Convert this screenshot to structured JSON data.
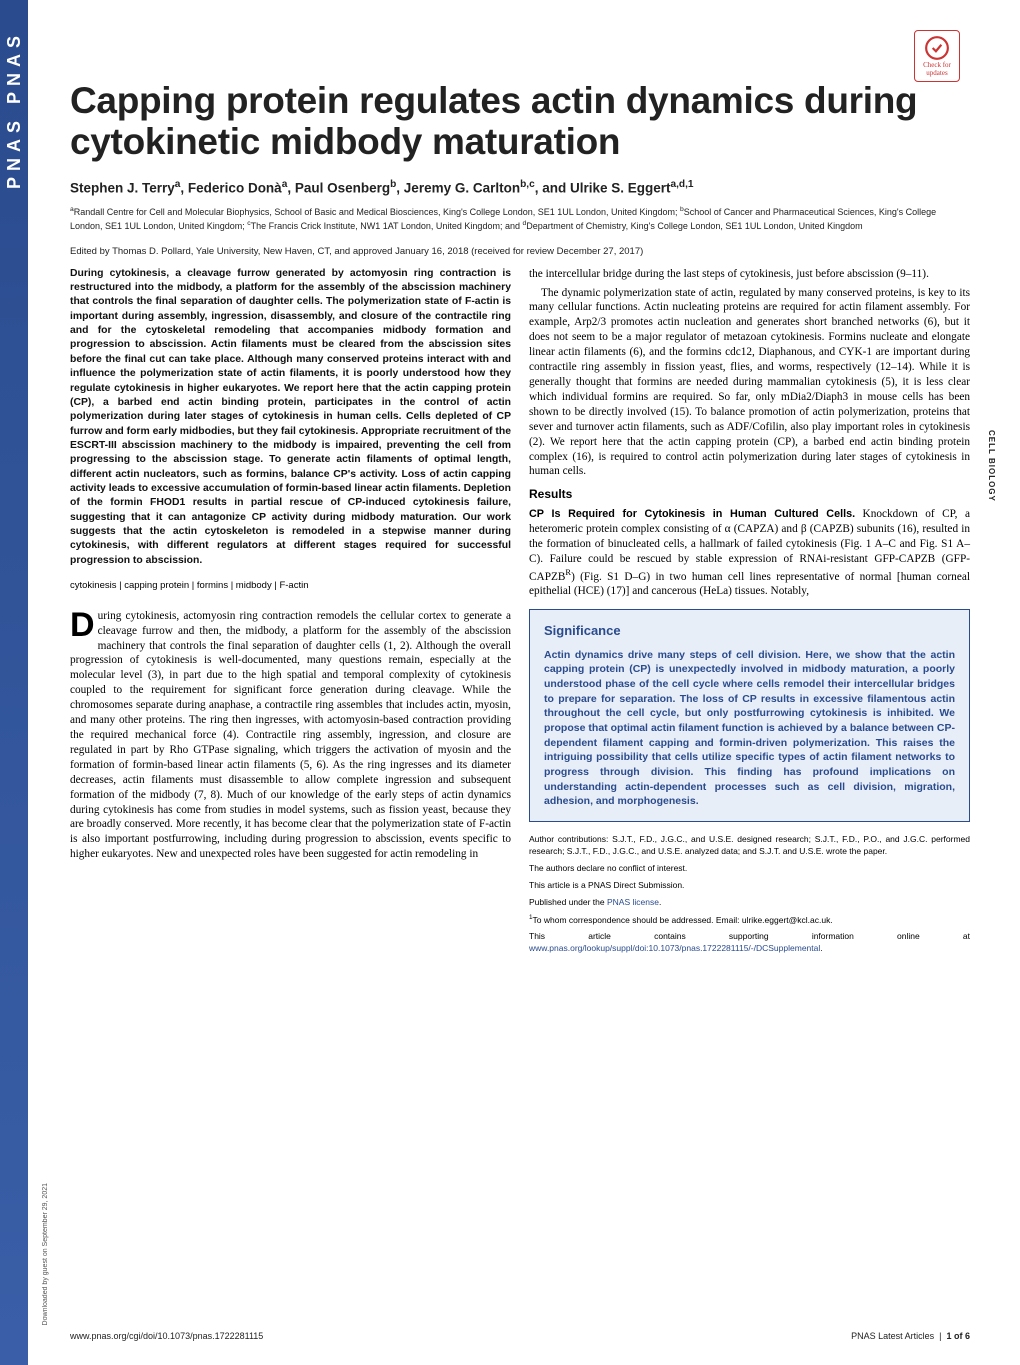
{
  "sidebar_text": "PNAS  PNAS",
  "cfu_label": "Check for updates",
  "title": "Capping protein regulates actin dynamics during cytokinetic midbody maturation",
  "authors_html": "Stephen J. Terry<sup>a</sup>, Federico Donà<sup>a</sup>, Paul Osenberg<sup>b</sup>, Jeremy G. Carlton<sup>b,c</sup>, and Ulrike S. Eggert<sup>a,d,1</sup>",
  "affiliations": "<sup>a</sup>Randall Centre for Cell and Molecular Biophysics, School of Basic and Medical Biosciences, King's College London, SE1 1UL London, United Kingdom; <sup>b</sup>School of Cancer and Pharmaceutical Sciences, King's College London, SE1 1UL London, United Kingdom; <sup>c</sup>The Francis Crick Institute, NW1 1AT London, United Kingdom; and <sup>d</sup>Department of Chemistry, King's College London, SE1 1UL London, United Kingdom",
  "edited_by": "Edited by Thomas D. Pollard, Yale University, New Haven, CT, and approved January 16, 2018 (received for review December 27, 2017)",
  "abstract": "During cytokinesis, a cleavage furrow generated by actomyosin ring contraction is restructured into the midbody, a platform for the assembly of the abscission machinery that controls the final separation of daughter cells. The polymerization state of F-actin is important during assembly, ingression, disassembly, and closure of the contractile ring and for the cytoskeletal remodeling that accompanies midbody formation and progression to abscission. Actin filaments must be cleared from the abscission sites before the final cut can take place. Although many conserved proteins interact with and influence the polymerization state of actin filaments, it is poorly understood how they regulate cytokinesis in higher eukaryotes. We report here that the actin capping protein (CP), a barbed end actin binding protein, participates in the control of actin polymerization during later stages of cytokinesis in human cells. Cells depleted of CP furrow and form early midbodies, but they fail cytokinesis. Appropriate recruitment of the ESCRT-III abscission machinery to the midbody is impaired, preventing the cell from progressing to the abscission stage. To generate actin filaments of optimal length, different actin nucleators, such as formins, balance CP's activity. Loss of actin capping activity leads to excessive accumulation of formin-based linear actin filaments. Depletion of the formin FHOD1 results in partial rescue of CP-induced cytokinesis failure, suggesting that it can antagonize CP activity during midbody maturation. Our work suggests that the actin cytoskeleton is remodeled in a stepwise manner during cytokinesis, with different regulators at different stages required for successful progression to abscission.",
  "keywords": "cytokinesis | capping protein | formins | midbody | F-actin",
  "intro_first": "uring cytokinesis, actomyosin ring contraction remodels the cellular cortex to generate a cleavage furrow and then, the midbody, a platform for the assembly of the abscission machinery that controls the final separation of daughter cells (1, 2). Although the overall progression of cytokinesis is well-documented, many questions remain, especially at the molecular level (3), in part due to the high spatial and temporal complexity of cytokinesis coupled to the requirement for significant force generation during cleavage. While the chromosomes separate during anaphase, a contractile ring assembles that includes actin, myosin, and many other proteins. The ring then ingresses, with actomyosin-based contraction providing the required mechanical force (4). Contractile ring assembly, ingression, and closure are regulated in part by Rho GTPase signaling, which triggers the activation of myosin and the formation of formin-based linear actin filaments (5, 6). As the ring ingresses and its diameter decreases, actin filaments must disassemble to allow complete ingression and subsequent formation of the midbody (7, 8). Much of our knowledge of the early steps of actin dynamics during cytokinesis has come from studies in model systems, such as fission yeast, because they are broadly conserved. More recently, it has become clear that the polymerization state of F-actin is also important postfurrowing, including during progression to abscission, events specific to higher eukaryotes. New and unexpected roles have been suggested for actin remodeling in",
  "col2_p1": "the intercellular bridge during the last steps of cytokinesis, just before abscission (9–11).",
  "col2_p2": "The dynamic polymerization state of actin, regulated by many conserved proteins, is key to its many cellular functions. Actin nucleating proteins are required for actin filament assembly. For example, Arp2/3 promotes actin nucleation and generates short branched networks (6), but it does not seem to be a major regulator of metazoan cytokinesis. Formins nucleate and elongate linear actin filaments (6), and the formins cdc12, Diaphanous, and CYK-1 are important during contractile ring assembly in fission yeast, flies, and worms, respectively (12–14). While it is generally thought that formins are needed during mammalian cytokinesis (5), it is less clear which individual formins are required. So far, only mDia2/Diaph3 in mouse cells has been shown to be directly involved (15). To balance promotion of actin polymerization, proteins that sever and turnover actin filaments, such as ADF/Cofilin, also play important roles in cytokinesis (2). We report here that the actin capping protein (CP), a barbed end actin binding protein complex (16), is required to control actin polymerization during later stages of cytokinesis in human cells.",
  "results_heading": "Results",
  "results_sub": "CP Is Required for Cytokinesis in Human Cultured Cells.",
  "results_p": " Knockdown of CP, a heteromeric protein complex consisting of α (CAPZA) and β (CAPZB) subunits (16), resulted in the formation of binucleated cells, a hallmark of failed cytokinesis (Fig. 1 A–C and Fig. S1 A–C). Failure could be rescued by stable expression of RNAi-resistant GFP-CAPZB (GFP-CAPZB<sup>R</sup>) (Fig. S1 D–G) in two human cell lines representative of normal [human corneal epithelial (HCE) (17)] and cancerous (HeLa) tissues. Notably,",
  "significance_heading": "Significance",
  "significance_text": "Actin dynamics drive many steps of cell division. Here, we show that the actin capping protein (CP) is unexpectedly involved in midbody maturation, a poorly understood phase of the cell cycle where cells remodel their intercellular bridges to prepare for separation. The loss of CP results in excessive filamentous actin throughout the cell cycle, but only postfurrowing cytokinesis is inhibited. We propose that optimal actin filament function is achieved by a balance between CP-dependent filament capping and formin-driven polymerization. This raises the intriguing possibility that cells utilize specific types of actin filament networks to progress through division. This finding has profound implications on understanding actin-dependent processes such as cell division, migration, adhesion, and morphogenesis.",
  "fn_contrib": "Author contributions: S.J.T., F.D., J.G.C., and U.S.E. designed research; S.J.T., F.D., P.O., and J.G.C. performed research; S.J.T., F.D., J.G.C., and U.S.E. analyzed data; and S.J.T. and U.S.E. wrote the paper.",
  "fn_conflict": "The authors declare no conflict of interest.",
  "fn_direct": "This article is a PNAS Direct Submission.",
  "fn_license_pre": "Published under the ",
  "fn_license_link": "PNAS license",
  "fn_corresp": "<sup>1</sup>To whom correspondence should be addressed. Email: ulrike.eggert@kcl.ac.uk.",
  "fn_suppl_pre": "This article contains supporting information online at ",
  "fn_suppl_link": "www.pnas.org/lookup/suppl/doi:10.1073/pnas.1722281115/-/DCSupplemental",
  "footer_doi": "www.pnas.org/cgi/doi/10.1073/pnas.1722281115",
  "footer_right_1": "PNAS Latest Articles",
  "footer_right_2": "1 of 6",
  "side_label": "CELL BIOLOGY",
  "download_note": "Downloaded by guest on September 29, 2021",
  "colors": {
    "pnas_blue": "#2a4b8d",
    "sig_bg": "#e8eef7",
    "link": "#2a4b8d",
    "cfu_red": "#c33"
  }
}
